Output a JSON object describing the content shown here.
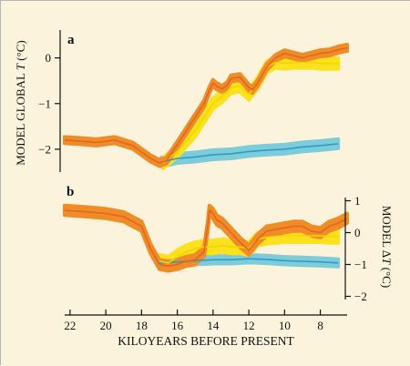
{
  "colors": {
    "background": "#fcf3dc",
    "axis": "#111111",
    "orange_line": "#e2661e",
    "orange_band": "#f08c28",
    "yellow_line": "#f3d500",
    "yellow_band": "#fbe11e",
    "blue_line": "#2b9ec4",
    "blue_band": "#7ecbda"
  },
  "chart_data": [
    {
      "panel": "a",
      "type": "line",
      "ylabel_prefix": "MODEL GLOBAL ",
      "ylabel_var": "T",
      "ylabel_suffix": " (°C)",
      "ylim": [
        -2.5,
        0.55
      ],
      "yticks": [
        0,
        -1,
        -2
      ],
      "ytick_labels": [
        "0",
        "−1",
        "−2"
      ],
      "xlim": [
        22.3,
        6.5
      ],
      "series": [
        {
          "color": "orange",
          "x": [
            22.3,
            21.5,
            20.5,
            19.5,
            18.5,
            17.5,
            17.0,
            16.6,
            16.0,
            15.5,
            15.0,
            14.5,
            14.2,
            14.0,
            13.8,
            13.5,
            13.2,
            13.0,
            12.5,
            12.0,
            11.8,
            11.5,
            11.0,
            10.5,
            10.0,
            9.5,
            9.0,
            8.5,
            8.0,
            7.5,
            7.0,
            6.5
          ],
          "y": [
            -1.8,
            -1.82,
            -1.85,
            -1.8,
            -1.92,
            -2.2,
            -2.3,
            -2.25,
            -1.9,
            -1.6,
            -1.3,
            -1.0,
            -0.7,
            -0.55,
            -0.62,
            -0.68,
            -0.6,
            -0.45,
            -0.42,
            -0.65,
            -0.7,
            -0.55,
            -0.2,
            0.0,
            0.1,
            0.05,
            0.0,
            0.05,
            0.1,
            0.12,
            0.18,
            0.22
          ],
          "band": 0.07
        },
        {
          "color": "yellow",
          "x": [
            16.8,
            16.0,
            15.0,
            14.5,
            14.0,
            13.5,
            13.0,
            12.5,
            12.0,
            11.5,
            11.0,
            10.5,
            10.0,
            9.5,
            9.0,
            8.5,
            8.0,
            7.5,
            7.0
          ],
          "y": [
            -2.3,
            -2.05,
            -1.6,
            -1.3,
            -1.0,
            -0.85,
            -0.65,
            -0.62,
            -0.8,
            -0.55,
            -0.2,
            -0.1,
            -0.12,
            -0.1,
            -0.1,
            -0.1,
            -0.12,
            -0.12,
            -0.12
          ],
          "band": 0.12
        },
        {
          "color": "blue",
          "x": [
            16.9,
            16.0,
            15.0,
            14.0,
            13.0,
            12.0,
            11.0,
            10.0,
            9.0,
            8.0,
            7.0
          ],
          "y": [
            -2.28,
            -2.2,
            -2.17,
            -2.12,
            -2.1,
            -2.05,
            -2.02,
            -2.0,
            -1.95,
            -1.92,
            -1.88
          ],
          "band": 0.1
        }
      ]
    },
    {
      "panel": "b",
      "type": "line",
      "ylabel_prefix": "MODEL Δ",
      "ylabel_var": "T",
      "ylabel_suffix": " (°C)",
      "ylim": [
        -2.1,
        1.1
      ],
      "yticks": [
        1,
        0,
        -1,
        -2
      ],
      "ytick_labels": [
        "1",
        "0",
        "−1",
        "−2"
      ],
      "xlim": [
        22.3,
        6.5
      ],
      "xticks": [
        22,
        20,
        18,
        16,
        14,
        12,
        10,
        8
      ],
      "xtick_labels": [
        "22",
        "20",
        "18",
        "16",
        "14",
        "12",
        "10",
        "8"
      ],
      "xlabel": "KILOYEARS BEFORE PRESENT",
      "series": [
        {
          "color": "orange",
          "x": [
            22.3,
            21.0,
            20.0,
            19.0,
            18.0,
            17.5,
            17.0,
            16.5,
            16.0,
            15.5,
            15.0,
            14.5,
            14.3,
            14.2,
            14.0,
            13.8,
            13.5,
            13.0,
            12.5,
            12.0,
            11.5,
            11.0,
            10.5,
            10.0,
            9.5,
            9.0,
            8.5,
            8.0,
            7.5,
            7.0,
            6.5
          ],
          "y": [
            0.7,
            0.65,
            0.6,
            0.5,
            0.2,
            -0.5,
            -1.0,
            -1.05,
            -1.0,
            -0.9,
            -0.85,
            -0.6,
            0.2,
            0.7,
            0.6,
            0.4,
            0.3,
            0.0,
            -0.3,
            -0.55,
            -0.2,
            0.05,
            0.1,
            0.15,
            0.2,
            0.2,
            0.05,
            0.0,
            0.2,
            0.3,
            0.45
          ],
          "band": 0.15
        },
        {
          "color": "yellow",
          "x": [
            17.0,
            16.5,
            16.0,
            15.5,
            15.0,
            14.5,
            14.0,
            13.5,
            13.0,
            12.5,
            12.0,
            11.5,
            11.0,
            10.5,
            10.0,
            9.5,
            9.0,
            8.5,
            8.0,
            7.5,
            7.0
          ],
          "y": [
            -0.9,
            -0.95,
            -0.75,
            -0.6,
            -0.5,
            -0.45,
            -0.45,
            -0.4,
            -0.45,
            -0.45,
            -0.5,
            -0.2,
            -0.15,
            -0.12,
            -0.1,
            -0.1,
            -0.1,
            -0.1,
            -0.1,
            -0.12,
            -0.12
          ],
          "band": 0.2
        },
        {
          "color": "blue",
          "x": [
            17.0,
            16.0,
            15.0,
            14.0,
            13.0,
            12.0,
            11.0,
            10.0,
            9.0,
            8.0,
            7.0
          ],
          "y": [
            -0.95,
            -0.92,
            -0.88,
            -0.85,
            -0.85,
            -0.82,
            -0.84,
            -0.88,
            -0.9,
            -0.92,
            -0.95
          ],
          "band": 0.12
        }
      ]
    }
  ]
}
